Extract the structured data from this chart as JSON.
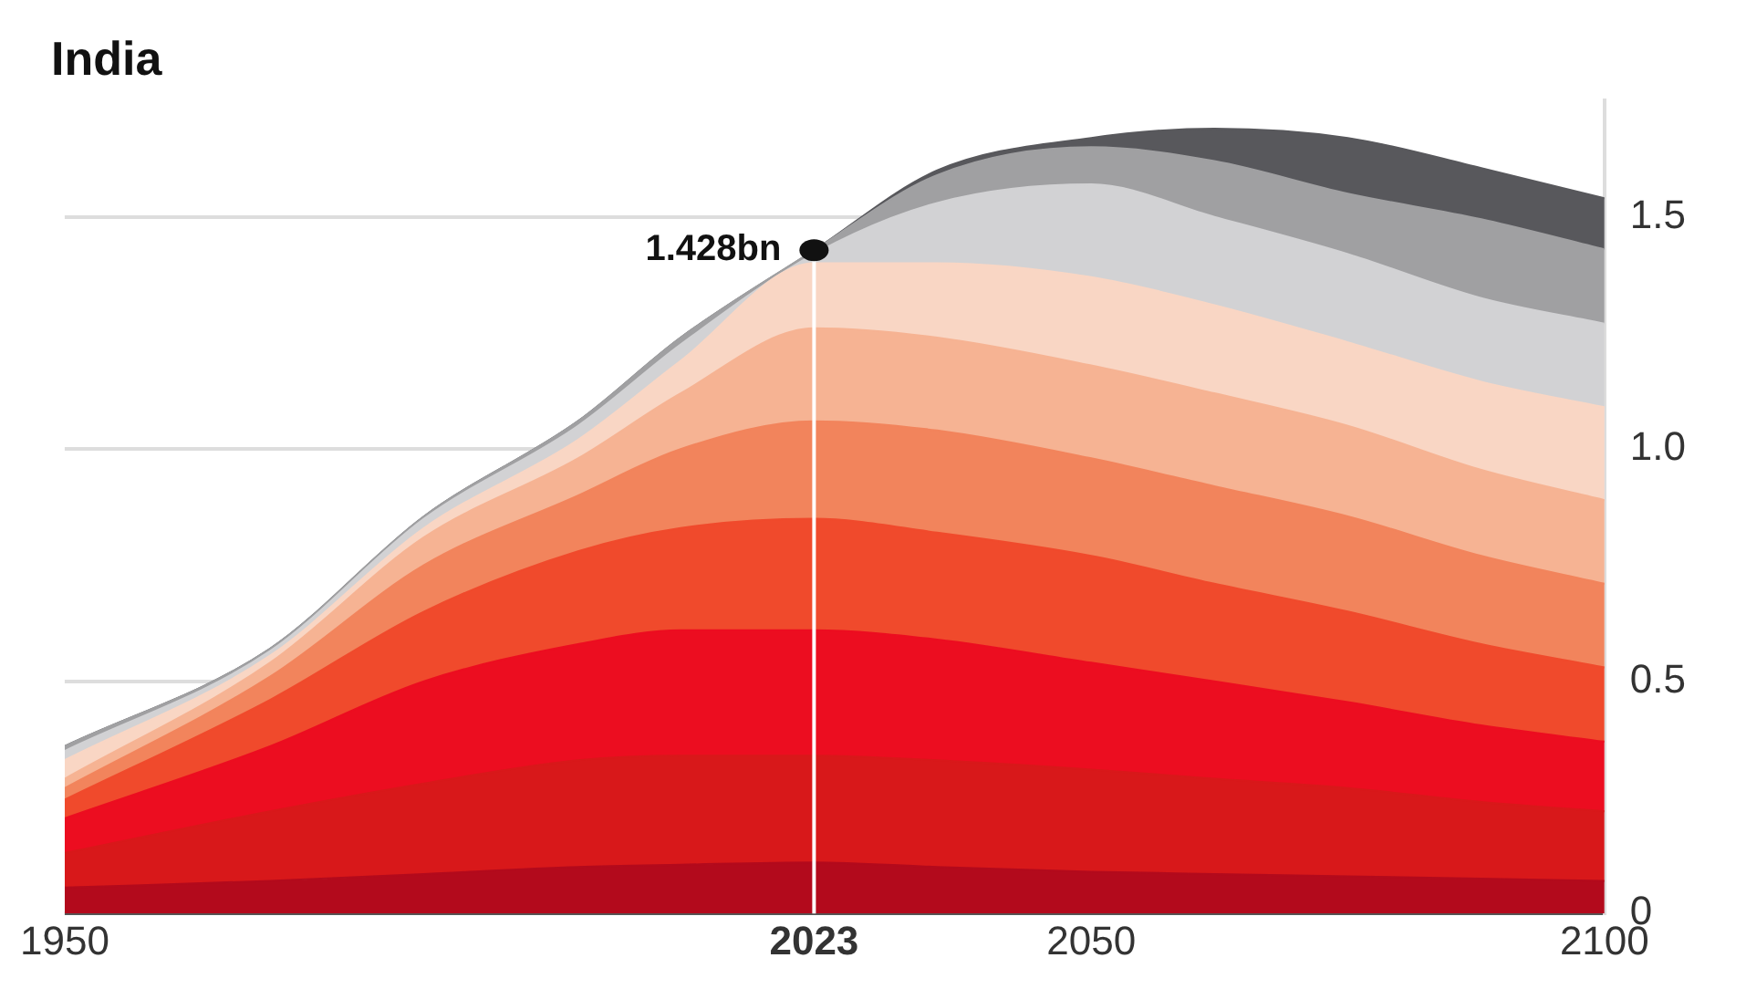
{
  "chart_data": {
    "type": "area",
    "title": "India",
    "stacked": true,
    "x": [
      1950,
      1970,
      1985,
      2000,
      2010,
      2023,
      2035,
      2050,
      2062,
      2075,
      2088,
      2100
    ],
    "series": [
      {
        "color": "#b30a1c",
        "values": [
          0.056,
          0.07,
          0.085,
          0.1,
          0.105,
          0.11,
          0.1,
          0.09,
          0.085,
          0.08,
          0.075,
          0.07
        ]
      },
      {
        "color": "#d8181a",
        "values": [
          0.074,
          0.15,
          0.195,
          0.23,
          0.235,
          0.23,
          0.23,
          0.22,
          0.205,
          0.19,
          0.165,
          0.15
        ]
      },
      {
        "color": "#ec0d20",
        "values": [
          0.075,
          0.14,
          0.22,
          0.25,
          0.27,
          0.27,
          0.26,
          0.23,
          0.21,
          0.185,
          0.165,
          0.15
        ]
      },
      {
        "color": "#f04a2c",
        "values": [
          0.04,
          0.1,
          0.15,
          0.2,
          0.22,
          0.24,
          0.23,
          0.23,
          0.21,
          0.195,
          0.175,
          0.16
        ]
      },
      {
        "color": "#f2845c",
        "values": [
          0.025,
          0.05,
          0.1,
          0.12,
          0.17,
          0.21,
          0.22,
          0.21,
          0.21,
          0.205,
          0.19,
          0.18
        ]
      },
      {
        "color": "#f6b393",
        "values": [
          0.02,
          0.03,
          0.06,
          0.08,
          0.12,
          0.2,
          0.2,
          0.2,
          0.2,
          0.195,
          0.185,
          0.18
        ]
      },
      {
        "color": "#f9d6c4",
        "values": [
          0.04,
          0.015,
          0.02,
          0.04,
          0.07,
          0.14,
          0.16,
          0.19,
          0.19,
          0.18,
          0.19,
          0.2
        ]
      },
      {
        "color": "#d2d2d4",
        "values": [
          0.02,
          0.01,
          0.02,
          0.03,
          0.035,
          0.02,
          0.13,
          0.2,
          0.19,
          0.19,
          0.18,
          0.18
        ]
      },
      {
        "color": "#a0a0a2",
        "values": [
          0.01,
          0.005,
          0.005,
          0.01,
          0.015,
          0.008,
          0.06,
          0.08,
          0.12,
          0.13,
          0.17,
          0.16
        ]
      },
      {
        "color": "#58585c",
        "values": [
          0,
          0,
          0,
          0,
          0,
          0,
          0.01,
          0.02,
          0.07,
          0.12,
          0.11,
          0.11
        ]
      }
    ],
    "xlim": [
      1950,
      2100
    ],
    "xticks": [
      1950,
      2023,
      2050,
      2100
    ],
    "ylim": [
      0,
      1.75
    ],
    "yticks": [
      0,
      0.5,
      {
        "value": 1,
        "label": "1.0"
      },
      1.5
    ],
    "grid": "y",
    "legend": false,
    "marker": "none",
    "ref_lines": [
      {
        "axis": "x",
        "value": 2023,
        "color": "#ffffff"
      }
    ],
    "annotations": [
      {
        "text": "1.428bn",
        "x": 2023,
        "y": 1.428
      }
    ]
  }
}
